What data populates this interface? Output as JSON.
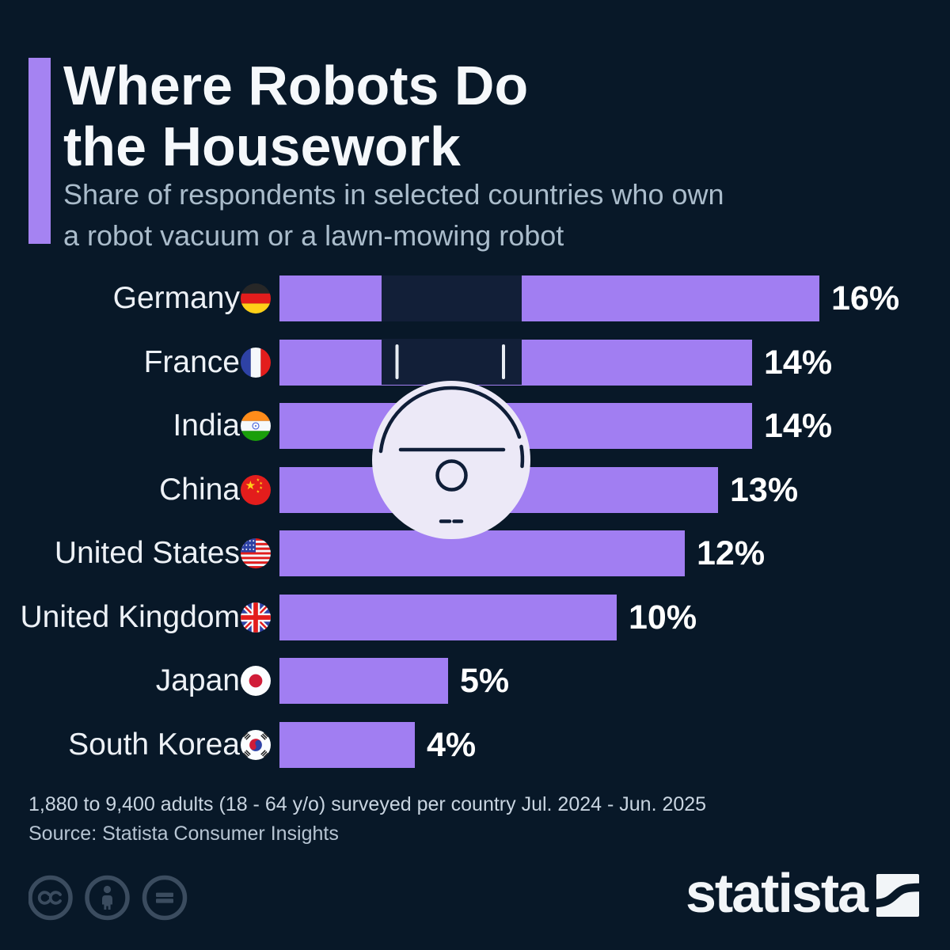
{
  "header": {
    "title_line1": "Where Robots Do",
    "title_line2": "the Housework",
    "subtitle_line1": "Share of respondents in selected countries who own",
    "subtitle_line2": "a robot vacuum or a lawn-mowing robot"
  },
  "chart_data": {
    "type": "bar",
    "orientation": "horizontal",
    "title": "Where Robots Do the Housework",
    "subtitle": "Share of respondents in selected countries who own a robot vacuum or a lawn-mowing robot",
    "unit": "percent",
    "xlim": [
      0,
      16
    ],
    "grid": false,
    "legend": false,
    "categories": [
      "Germany",
      "France",
      "India",
      "China",
      "United States",
      "United Kingdom",
      "Japan",
      "South Korea"
    ],
    "values": [
      16,
      14,
      14,
      13,
      12,
      10,
      5,
      4
    ],
    "value_labels": [
      "16%",
      "14%",
      "14%",
      "13%",
      "12%",
      "10%",
      "5%",
      "4%"
    ],
    "flags": [
      "de",
      "fr",
      "in",
      "cn",
      "us",
      "gb",
      "jp",
      "kr"
    ]
  },
  "footer": {
    "note": "1,880 to 9,400 adults (18 - 64 y/o) surveyed per country Jul. 2024 - Jun. 2025",
    "source": "Source: Statista Consumer Insights"
  },
  "branding": {
    "logo_text": "statista",
    "license_icons": [
      "cc-icon",
      "attribution-icon",
      "nd-icon"
    ]
  },
  "colors": {
    "background": "#081828",
    "bar": "#a17ef2",
    "accent": "#a583f2",
    "dock": "#121f38",
    "robot_fill": "#ece9f7",
    "robot_stroke": "#0f1e38",
    "title": "#f5f8fb",
    "subtitle": "#aabccb",
    "label": "#edf1f6",
    "value": "#ffffff",
    "note": "#c9d5e1",
    "source": "#b7c5d3",
    "icon": "#3b4c5f",
    "logo": "#f2f5f8"
  }
}
